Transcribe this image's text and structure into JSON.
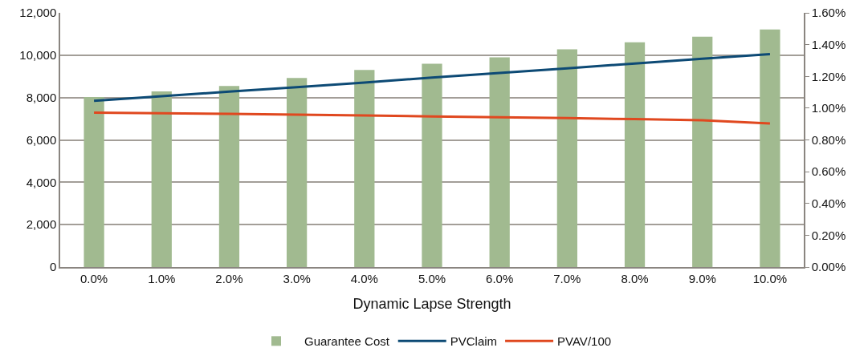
{
  "chart_data": {
    "type": "bar",
    "xlabel": "Dynamic Lapse Strength",
    "categories": [
      "0.0%",
      "1.0%",
      "2.0%",
      "3.0%",
      "4.0%",
      "5.0%",
      "6.0%",
      "7.0%",
      "8.0%",
      "9.0%",
      "10.0%"
    ],
    "series": [
      {
        "name": "Guarantee Cost",
        "axis": "y2",
        "color": "#a1ba90",
        "values": [
          1.07,
          1.105,
          1.14,
          1.19,
          1.24,
          1.28,
          1.32,
          1.37,
          1.415,
          1.45,
          1.495
        ]
      },
      {
        "name": "PVClaim",
        "type": "line",
        "color": "#0d4a75",
        "values": [
          7850,
          8060,
          8280,
          8490,
          8710,
          8940,
          9160,
          9380,
          9610,
          9830,
          10050
        ]
      },
      {
        "name": "PVAV/100",
        "type": "line",
        "color": "#e0481f",
        "values": [
          7290,
          7260,
          7230,
          7190,
          7150,
          7110,
          7070,
          7030,
          6980,
          6930,
          6780
        ]
      }
    ],
    "ylim": [
      0,
      12000
    ],
    "yticks": [
      {
        "value": 0,
        "label": "0"
      },
      {
        "value": 2000,
        "label": "2,000"
      },
      {
        "value": 4000,
        "label": "4,000"
      },
      {
        "value": 6000,
        "label": "6,000"
      },
      {
        "value": 8000,
        "label": "8,000"
      },
      {
        "value": 10000,
        "label": "10,000"
      },
      {
        "value": 12000,
        "label": "12,000"
      }
    ],
    "y2lim": [
      0,
      1.6
    ],
    "y2ticks": [
      {
        "value": 0,
        "label": "0.00%"
      },
      {
        "value": 0.2,
        "label": "0.20%"
      },
      {
        "value": 0.4,
        "label": "0.40%"
      },
      {
        "value": 0.6,
        "label": "0.60%"
      },
      {
        "value": 0.8,
        "label": "0.80%"
      },
      {
        "value": 1.0,
        "label": "1.00%"
      },
      {
        "value": 1.2,
        "label": "1.20%"
      },
      {
        "value": 1.4,
        "label": "1.40%"
      },
      {
        "value": 1.6,
        "label": "1.60%"
      }
    ],
    "grid": "y",
    "legend": "bottom",
    "line_style": "solid",
    "marker": "none"
  }
}
